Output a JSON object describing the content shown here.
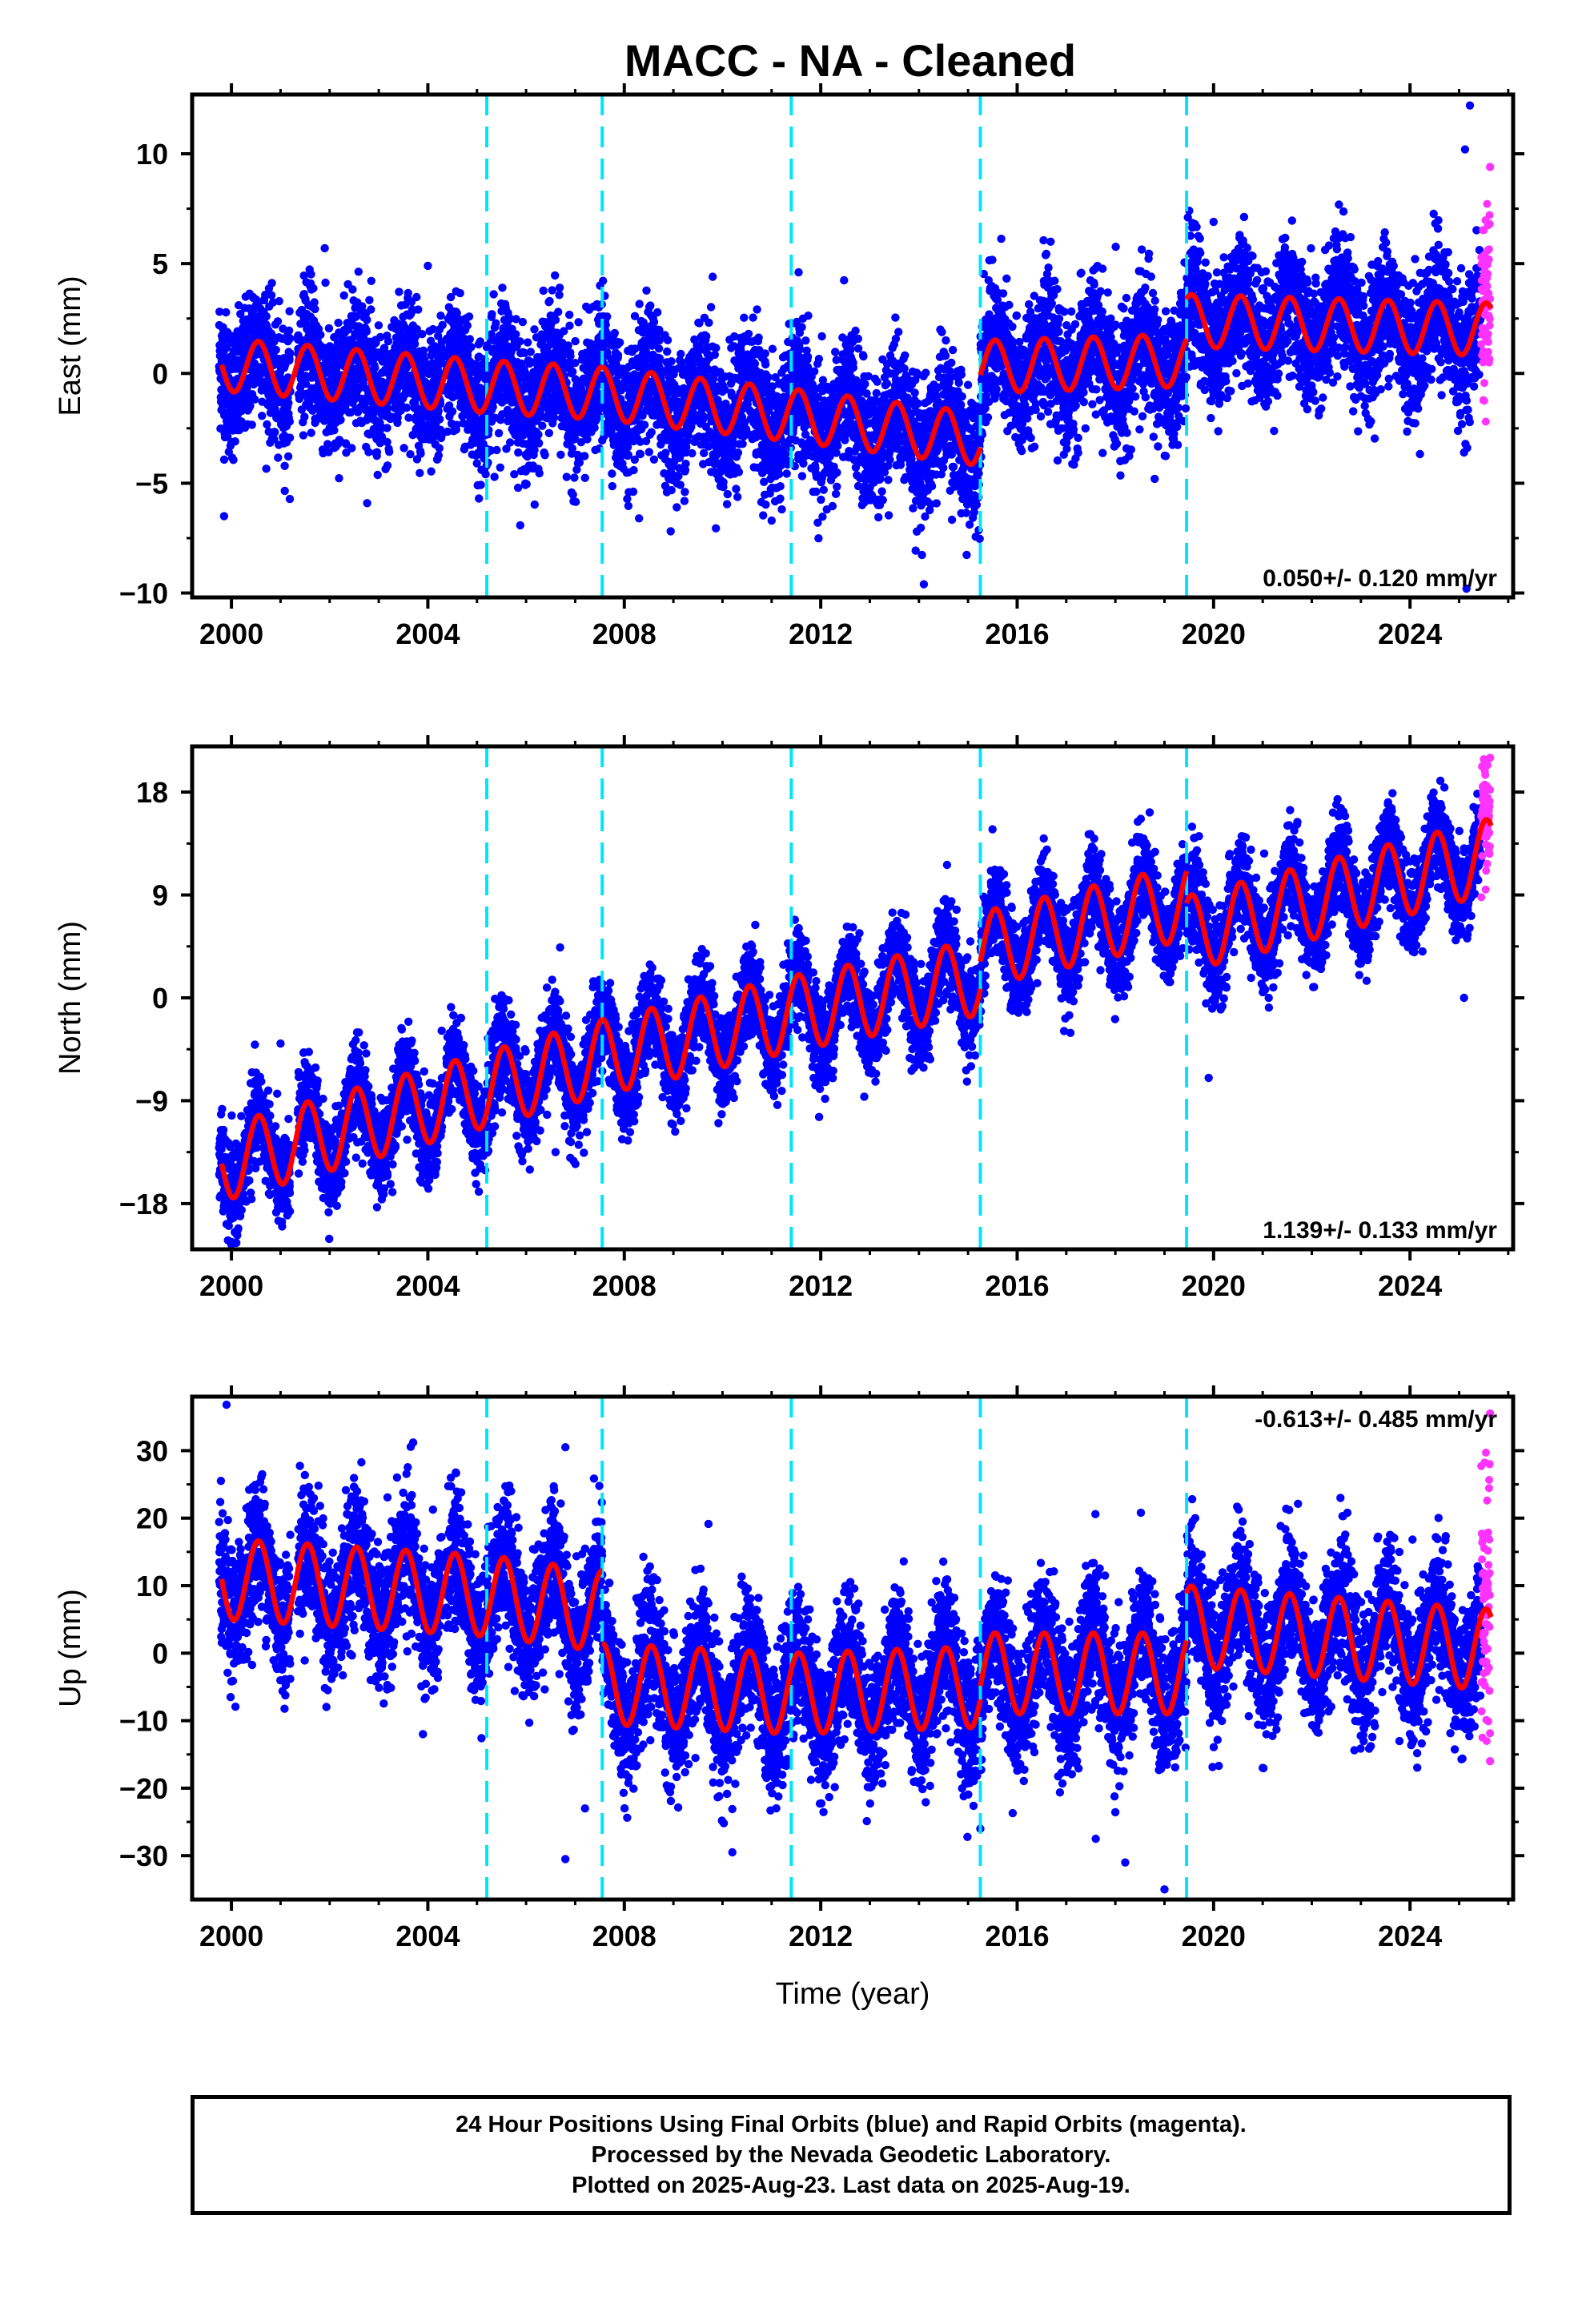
{
  "title": "MACC  - NA - Cleaned",
  "colors": {
    "final_orbits": "#0000ff",
    "rapid_orbits": "#ff33ff",
    "model": "#ff0000",
    "breaks": "#00e5ff"
  },
  "footer": {
    "line1": "24 Hour Positions Using Final Orbits (blue) and Rapid Orbits (magenta).",
    "line2": "Processed by the Nevada Geodetic Laboratory.",
    "line3": "Plotted on 2025-Aug-23. Last data on 2025-Aug-19."
  },
  "chart_data": [
    {
      "type": "scatter",
      "ylabel": "East (mm)",
      "xlabel": "",
      "xlim": [
        1999.2,
        2026.1
      ],
      "ylim": [
        -10.2,
        12.7
      ],
      "x_ticks": [
        2000,
        2004,
        2008,
        2012,
        2016,
        2020,
        2024
      ],
      "x_tick_labels": [
        "2000",
        "2004",
        "2008",
        "2012",
        "2016",
        "2020",
        "2024"
      ],
      "y_ticks": [
        -10,
        -5,
        0,
        5,
        10
      ],
      "y_tick_labels": [
        "−10",
        "−5",
        "0",
        "5",
        "10"
      ],
      "rate_label": "0.050+/- 0.120 mm/yr",
      "rate_position": "bottom-right",
      "breaks": [
        2005.2,
        2007.55,
        2011.4,
        2015.25,
        2019.45
      ],
      "model": {
        "segments": [
          {
            "x0": 1999.8,
            "y0": 0.4,
            "x1": 2005.2,
            "y1": -0.6
          },
          {
            "x0": 2005.2,
            "y0": -0.6,
            "x1": 2007.55,
            "y1": -0.9
          },
          {
            "x0": 2007.55,
            "y0": -0.9,
            "x1": 2011.4,
            "y1": -1.9
          },
          {
            "x0": 2011.4,
            "y0": -1.9,
            "x1": 2015.25,
            "y1": -3.0
          },
          {
            "x0": 2015.25,
            "y0": 0.3,
            "x1": 2019.45,
            "y1": 0.6
          },
          {
            "x0": 2019.45,
            "y0": 2.4,
            "x1": 2025.65,
            "y1": 2.0
          }
        ],
        "seasonal_amplitude": 1.2,
        "seasonal_phase": 0.55
      },
      "series": [
        {
          "name": "Final Orbits",
          "color": "#0000ff",
          "x_start": 1999.75,
          "x_end": 2025.45,
          "scatter": 1.5
        },
        {
          "name": "Rapid Orbits",
          "color": "#ff33ff",
          "x_start": 2025.45,
          "x_end": 2025.63,
          "scatter": 2.2
        }
      ],
      "outliers": [
        {
          "x": 2025.22,
          "y": 12.2
        },
        {
          "x": 2025.12,
          "y": 10.2
        },
        {
          "x": 2025.63,
          "y": 9.4
        },
        {
          "x": 2025.62,
          "y": 6.8
        },
        {
          "x": 2014.1,
          "y": -9.6
        },
        {
          "x": 2025.15,
          "y": -9.8
        },
        {
          "x": 2025.1,
          "y": -3.6
        },
        {
          "x": 2018.8,
          "y": -4.8
        },
        {
          "x": 1999.85,
          "y": -6.5
        },
        {
          "x": 2011.0,
          "y": -6.7
        },
        {
          "x": 2008.3,
          "y": -6.6
        },
        {
          "x": 2020.0,
          "y": 6.9
        },
        {
          "x": 2001.9,
          "y": 5.7
        },
        {
          "x": 2009.8,
          "y": 4.4
        },
        {
          "x": 2004.0,
          "y": 4.9
        }
      ]
    },
    {
      "type": "scatter",
      "ylabel": "North (mm)",
      "xlabel": "",
      "xlim": [
        1999.2,
        2026.1
      ],
      "ylim": [
        -22,
        22
      ],
      "x_ticks": [
        2000,
        2004,
        2008,
        2012,
        2016,
        2020,
        2024
      ],
      "x_tick_labels": [
        "2000",
        "2004",
        "2008",
        "2012",
        "2016",
        "2020",
        "2024"
      ],
      "y_ticks": [
        -18,
        -9,
        0,
        9,
        18
      ],
      "y_tick_labels": [
        "−18",
        "−9",
        "0",
        "9",
        "18"
      ],
      "rate_label": "1.139+/- 0.133 mm/yr",
      "rate_position": "bottom-right",
      "breaks": [
        2005.2,
        2007.55,
        2011.4,
        2015.25,
        2019.45
      ],
      "model": {
        "segments": [
          {
            "x0": 1999.8,
            "y0": -14.5,
            "x1": 2005.2,
            "y1": -8.0
          },
          {
            "x0": 2005.2,
            "y0": -8.0,
            "x1": 2007.55,
            "y1": -5.2
          },
          {
            "x0": 2007.55,
            "y0": -5.2,
            "x1": 2011.4,
            "y1": -1.4
          },
          {
            "x0": 2011.4,
            "y0": -1.4,
            "x1": 2015.25,
            "y1": 1.8
          },
          {
            "x0": 2015.25,
            "y0": 4.2,
            "x1": 2019.45,
            "y1": 8.4
          },
          {
            "x0": 2019.45,
            "y0": 5.6,
            "x1": 2025.65,
            "y1": 12.4
          }
        ],
        "seasonal_amplitude": 3.3,
        "seasonal_phase": 0.55
      },
      "series": [
        {
          "name": "Final Orbits",
          "color": "#0000ff",
          "x_start": 1999.75,
          "x_end": 2025.45,
          "scatter": 2.0
        },
        {
          "name": "Rapid Orbits",
          "color": "#ff33ff",
          "x_start": 2025.45,
          "x_end": 2025.63,
          "scatter": 2.6
        }
      ],
      "outliers": [
        {
          "x": 2025.63,
          "y": 21.0
        },
        {
          "x": 2019.9,
          "y": -7.0
        },
        {
          "x": 2019.1,
          "y": 7.2
        },
        {
          "x": 2017.9,
          "y": 1.6
        },
        {
          "x": 2006.9,
          "y": -14.0
        },
        {
          "x": 2006.6,
          "y": -13.5
        },
        {
          "x": 2001.0,
          "y": -4.0
        },
        {
          "x": 1999.9,
          "y": -19.8
        },
        {
          "x": 2025.1,
          "y": 0.0
        },
        {
          "x": 2023.0,
          "y": 3.0
        },
        {
          "x": 2024.7,
          "y": 18.4
        }
      ]
    },
    {
      "type": "scatter",
      "ylabel": "Up (mm)",
      "xlabel": "Time (year)",
      "xlim": [
        1999.2,
        2026.1
      ],
      "ylim": [
        -36.5,
        38
      ],
      "x_ticks": [
        2000,
        2004,
        2008,
        2012,
        2016,
        2020,
        2024
      ],
      "x_tick_labels": [
        "2000",
        "2004",
        "2008",
        "2012",
        "2016",
        "2020",
        "2024"
      ],
      "y_ticks": [
        -30,
        -20,
        -10,
        0,
        10,
        20,
        30
      ],
      "y_tick_labels": [
        "−30",
        "−20",
        "−10",
        "0",
        "10",
        "20",
        "30"
      ],
      "rate_label": "-0.613+/- 0.485 mm/yr",
      "rate_position": "top-right",
      "breaks": [
        2005.2,
        2007.55,
        2011.4,
        2015.25,
        2019.45
      ],
      "model": {
        "segments": [
          {
            "x0": 1999.8,
            "y0": 11.0,
            "x1": 2005.2,
            "y1": 8.5
          },
          {
            "x0": 2005.2,
            "y0": 8.5,
            "x1": 2007.55,
            "y1": 6.2
          },
          {
            "x0": 2007.55,
            "y0": -4.5,
            "x1": 2011.4,
            "y1": -6.0
          },
          {
            "x0": 2011.4,
            "y0": -6.0,
            "x1": 2015.25,
            "y1": -5.0
          },
          {
            "x0": 2015.25,
            "y0": -3.0,
            "x1": 2019.45,
            "y1": -3.0
          },
          {
            "x0": 2019.45,
            "y0": 4.0,
            "x1": 2025.65,
            "y1": 0.5
          }
        ],
        "seasonal_amplitude": 6.0,
        "seasonal_phase": 0.55
      },
      "series": [
        {
          "name": "Final Orbits",
          "color": "#0000ff",
          "x_start": 1999.75,
          "x_end": 2025.45,
          "scatter": 5.0
        },
        {
          "name": "Rapid Orbits",
          "color": "#ff33ff",
          "x_start": 2025.45,
          "x_end": 2025.63,
          "scatter": 9.0
        }
      ],
      "outliers": [
        {
          "x": 1999.9,
          "y": 36.8
        },
        {
          "x": 2003.7,
          "y": 31.2
        },
        {
          "x": 2006.8,
          "y": 30.5
        },
        {
          "x": 2007.2,
          "y": -23.0
        },
        {
          "x": 2006.8,
          "y": -30.5
        },
        {
          "x": 2010.2,
          "y": -29.5
        },
        {
          "x": 2017.6,
          "y": -27.5
        },
        {
          "x": 2018.2,
          "y": -31.0
        },
        {
          "x": 2019.0,
          "y": -35.0
        },
        {
          "x": 2025.63,
          "y": 35.5
        },
        {
          "x": 2025.62,
          "y": 28.0
        },
        {
          "x": 2025.63,
          "y": -16.0
        },
        {
          "x": 2003.9,
          "y": -12.0
        },
        {
          "x": 2021.0,
          "y": -17.0
        },
        {
          "x": 2015.25,
          "y": -26.0
        }
      ]
    }
  ]
}
